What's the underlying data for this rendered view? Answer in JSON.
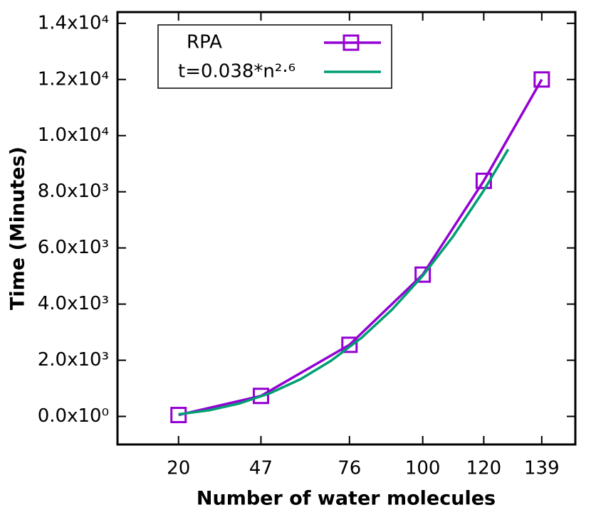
{
  "chart_data": {
    "type": "line",
    "x_label": "Number of water molecules",
    "y_label": "Time (Minutes)",
    "x": [
      20,
      47,
      76,
      100,
      120,
      139
    ],
    "series": [
      {
        "name": "RPA",
        "color": "#9400d3",
        "marker": "square",
        "values": [
          50,
          730,
          2550,
          5050,
          8390,
          12000
        ]
      },
      {
        "name": "t=0.038*n²·⁶",
        "color": "#009e73",
        "x": [
          20,
          30,
          40,
          50,
          60,
          70,
          80,
          90,
          100,
          110,
          120,
          128
        ],
        "values": [
          76,
          218,
          463,
          827,
          1327,
          1985,
          2803,
          3811,
          5008,
          6421,
          8045,
          9513
        ]
      }
    ],
    "xlim": [
      0,
      150
    ],
    "xticks": [
      20,
      47,
      76,
      100,
      120,
      139
    ],
    "ylim": [
      -1000,
      14400
    ],
    "yticks": [
      {
        "value": 0,
        "label": "0.0x10⁰"
      },
      {
        "value": 2000,
        "label": "2.0x10³"
      },
      {
        "value": 4000,
        "label": "4.0x10³"
      },
      {
        "value": 6000,
        "label": "6.0x10³"
      },
      {
        "value": 8000,
        "label": "8.0x10³"
      },
      {
        "value": 10000,
        "label": "1.0x10⁴"
      },
      {
        "value": 12000,
        "label": "1.2x10⁴"
      },
      {
        "value": 14000,
        "label": "1.4x10⁴"
      }
    ],
    "legend": "top-left",
    "grid": false
  }
}
